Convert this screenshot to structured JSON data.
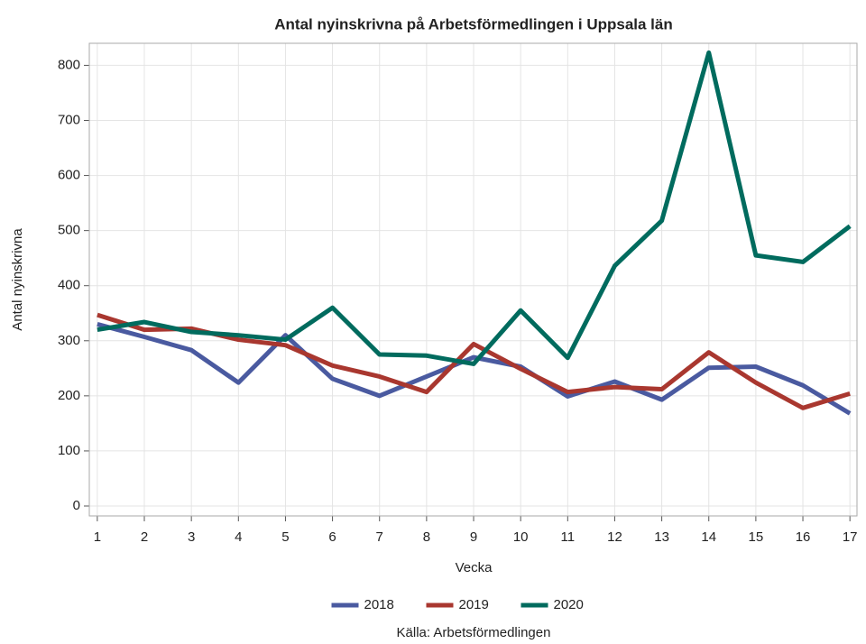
{
  "chart_data": {
    "type": "line",
    "title": "Antal nyinskrivna på Arbetsförmedlingen i Uppsala län",
    "x_label": "Vecka",
    "y_label": "Antal nyinskrivna",
    "source": "Källa: Arbetsförmedlingen",
    "x": [
      1,
      2,
      3,
      4,
      5,
      6,
      7,
      8,
      9,
      10,
      11,
      12,
      13,
      14,
      15,
      16,
      17
    ],
    "series": [
      {
        "name": "2018",
        "color": "#4a5aa0",
        "values": [
          330,
          307,
          283,
          224,
          310,
          231,
          200,
          235,
          270,
          253,
          199,
          226,
          193,
          251,
          253,
          219,
          168
        ]
      },
      {
        "name": "2019",
        "color": "#a9372f",
        "values": [
          347,
          320,
          322,
          302,
          292,
          255,
          235,
          207,
          294,
          249,
          207,
          216,
          212,
          279,
          224,
          178,
          204
        ]
      },
      {
        "name": "2020",
        "color": "#006b5e",
        "values": [
          320,
          334,
          316,
          310,
          302,
          360,
          275,
          273,
          258,
          355,
          269,
          436,
          518,
          823,
          455,
          443,
          508
        ]
      }
    ],
    "xlim": [
      0.83,
      17.15
    ],
    "xticks": [
      1,
      2,
      3,
      4,
      5,
      6,
      7,
      8,
      9,
      10,
      11,
      12,
      13,
      14,
      15,
      16,
      17
    ],
    "ylim": [
      -18,
      840
    ],
    "yticks": [
      0,
      100,
      200,
      300,
      400,
      500,
      600,
      700,
      800
    ],
    "grid": true,
    "legend": "bottom"
  }
}
